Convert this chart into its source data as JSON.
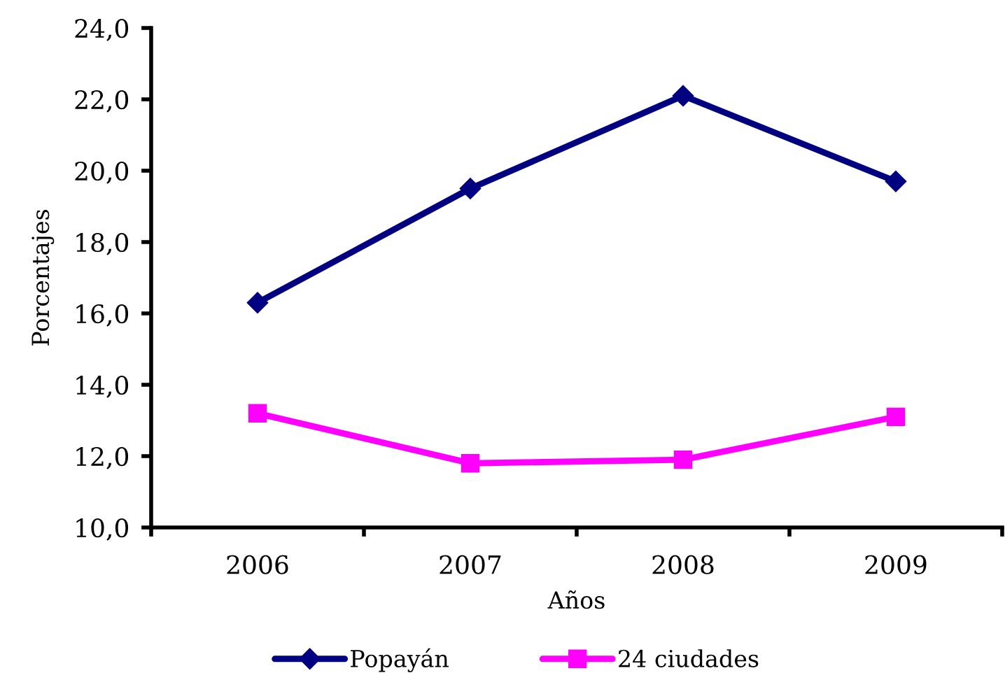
{
  "chart_data": {
    "type": "line",
    "xlabel": "Años",
    "ylabel": "Porcentajes",
    "categories": [
      "2006",
      "2007",
      "2008",
      "2009"
    ],
    "series": [
      {
        "name": "Popayán",
        "color": "#000080",
        "marker": "diamond",
        "values": [
          16.3,
          19.5,
          22.1,
          19.7
        ]
      },
      {
        "name": "24 ciudades",
        "color": "#ff00ff",
        "marker": "square",
        "values": [
          13.2,
          11.8,
          11.9,
          13.1
        ]
      }
    ],
    "ylim": [
      10,
      24
    ],
    "yticks": [
      {
        "value": 10,
        "label": "10,0"
      },
      {
        "value": 12,
        "label": "12,0"
      },
      {
        "value": 14,
        "label": "14,0"
      },
      {
        "value": 16,
        "label": "16,0"
      },
      {
        "value": 18,
        "label": "18,0"
      },
      {
        "value": 20,
        "label": "20,0"
      },
      {
        "value": 22,
        "label": "22,0"
      },
      {
        "value": 24,
        "label": "24,0"
      }
    ],
    "grid": false,
    "legend": "bottom",
    "line_style": "solid"
  }
}
